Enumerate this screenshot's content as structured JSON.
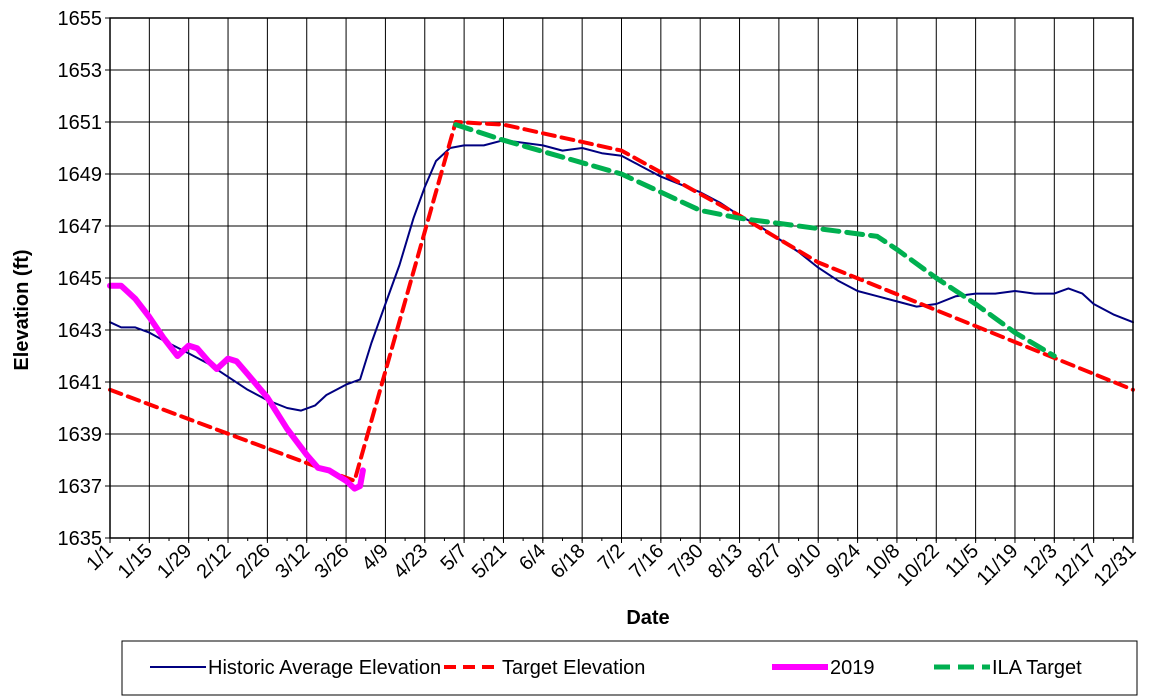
{
  "chart_data": {
    "type": "line",
    "title": "",
    "xlabel": "Date",
    "ylabel": "Elevation (ft)",
    "ylim": [
      1635,
      1655
    ],
    "y_ticks": [
      1635,
      1637,
      1639,
      1641,
      1643,
      1645,
      1647,
      1649,
      1651,
      1653,
      1655
    ],
    "x_tick_labels": [
      "1/1",
      "1/15",
      "1/29",
      "2/12",
      "2/26",
      "3/12",
      "3/26",
      "4/9",
      "4/23",
      "5/7",
      "5/21",
      "6/4",
      "6/18",
      "7/2",
      "7/16",
      "7/30",
      "8/13",
      "8/27",
      "9/10",
      "9/24",
      "10/8",
      "10/22",
      "11/5",
      "11/19",
      "12/3",
      "12/17",
      "12/31"
    ],
    "grid": true,
    "legend_position": "bottom",
    "series": [
      {
        "name": "Historic Average Elevation",
        "color": "#000080",
        "style": "solid",
        "points": [
          [
            "1/1",
            1643.3
          ],
          [
            "1/5",
            1643.1
          ],
          [
            "1/10",
            1643.1
          ],
          [
            "1/15",
            1642.9
          ],
          [
            "1/20",
            1642.6
          ],
          [
            "1/29",
            1642.1
          ],
          [
            "2/5",
            1641.7
          ],
          [
            "2/12",
            1641.2
          ],
          [
            "2/19",
            1640.7
          ],
          [
            "2/26",
            1640.3
          ],
          [
            "3/5",
            1640.0
          ],
          [
            "3/10",
            1639.9
          ],
          [
            "3/15",
            1640.1
          ],
          [
            "3/19",
            1640.5
          ],
          [
            "3/26",
            1640.9
          ],
          [
            "3/31",
            1641.1
          ],
          [
            "4/4",
            1642.5
          ],
          [
            "4/9",
            1644.0
          ],
          [
            "4/14",
            1645.5
          ],
          [
            "4/19",
            1647.3
          ],
          [
            "4/23",
            1648.5
          ],
          [
            "4/27",
            1649.5
          ],
          [
            "5/2",
            1650.0
          ],
          [
            "5/7",
            1650.1
          ],
          [
            "5/14",
            1650.1
          ],
          [
            "5/21",
            1650.3
          ],
          [
            "6/4",
            1650.1
          ],
          [
            "6/11",
            1649.9
          ],
          [
            "6/18",
            1650.0
          ],
          [
            "6/25",
            1649.8
          ],
          [
            "7/2",
            1649.7
          ],
          [
            "7/9",
            1649.3
          ],
          [
            "7/16",
            1648.9
          ],
          [
            "7/23",
            1648.6
          ],
          [
            "7/30",
            1648.3
          ],
          [
            "8/6",
            1647.9
          ],
          [
            "8/13",
            1647.4
          ],
          [
            "8/20",
            1647.0
          ],
          [
            "8/27",
            1646.5
          ],
          [
            "9/3",
            1646.0
          ],
          [
            "9/10",
            1645.4
          ],
          [
            "9/17",
            1644.9
          ],
          [
            "9/24",
            1644.5
          ],
          [
            "10/1",
            1644.3
          ],
          [
            "10/8",
            1644.1
          ],
          [
            "10/15",
            1643.9
          ],
          [
            "10/22",
            1644.0
          ],
          [
            "10/29",
            1644.3
          ],
          [
            "11/5",
            1644.4
          ],
          [
            "11/12",
            1644.4
          ],
          [
            "11/19",
            1644.5
          ],
          [
            "11/26",
            1644.4
          ],
          [
            "12/3",
            1644.4
          ],
          [
            "12/8",
            1644.6
          ],
          [
            "12/13",
            1644.4
          ],
          [
            "12/17",
            1644.0
          ],
          [
            "12/24",
            1643.6
          ],
          [
            "12/31",
            1643.3
          ]
        ]
      },
      {
        "name": "Target Elevation",
        "color": "#ff0000",
        "style": "dashed",
        "points": [
          [
            "1/1",
            1640.7
          ],
          [
            "3/29",
            1637.2
          ],
          [
            "5/4",
            1651.0
          ],
          [
            "5/21",
            1650.9
          ],
          [
            "7/2",
            1649.9
          ],
          [
            "8/13",
            1647.4
          ],
          [
            "9/10",
            1645.6
          ],
          [
            "12/31",
            1640.7
          ]
        ]
      },
      {
        "name": "2019",
        "color": "#ff00ff",
        "style": "solid-thick",
        "points": [
          [
            "1/1",
            1644.7
          ],
          [
            "1/5",
            1644.7
          ],
          [
            "1/10",
            1644.2
          ],
          [
            "1/15",
            1643.5
          ],
          [
            "1/20",
            1642.7
          ],
          [
            "1/25",
            1642.0
          ],
          [
            "1/29",
            1642.4
          ],
          [
            "2/1",
            1642.3
          ],
          [
            "2/5",
            1641.8
          ],
          [
            "2/8",
            1641.5
          ],
          [
            "2/12",
            1641.9
          ],
          [
            "2/15",
            1641.8
          ],
          [
            "2/19",
            1641.3
          ],
          [
            "2/26",
            1640.4
          ],
          [
            "3/5",
            1639.2
          ],
          [
            "3/12",
            1638.2
          ],
          [
            "3/16",
            1637.7
          ],
          [
            "3/20",
            1637.6
          ],
          [
            "3/26",
            1637.2
          ],
          [
            "3/29",
            1636.9
          ],
          [
            "3/31",
            1637.0
          ],
          [
            "4/1",
            1637.6
          ]
        ]
      },
      {
        "name": "ILA Target",
        "color": "#00b050",
        "style": "dashed-thick",
        "points": [
          [
            "5/4",
            1650.9
          ],
          [
            "5/21",
            1650.3
          ],
          [
            "7/2",
            1649.0
          ],
          [
            "7/30",
            1647.6
          ],
          [
            "8/13",
            1647.3
          ],
          [
            "8/27",
            1647.1
          ],
          [
            "9/10",
            1646.9
          ],
          [
            "10/1",
            1646.6
          ],
          [
            "10/8",
            1646.1
          ],
          [
            "10/22",
            1645.0
          ],
          [
            "11/5",
            1644.0
          ],
          [
            "11/19",
            1642.9
          ],
          [
            "12/3",
            1642.0
          ]
        ]
      }
    ]
  }
}
